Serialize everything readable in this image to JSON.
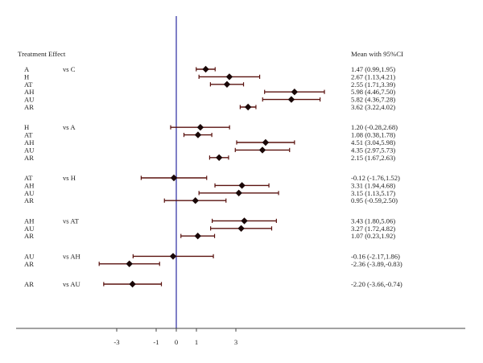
{
  "chart_data": {
    "type": "forest",
    "column_headers": {
      "left": "Treatment Effect",
      "right": "Mean with 95%CI"
    },
    "x_ticks": [
      {
        "value": -3,
        "label": "-3"
      },
      {
        "value": -1,
        "label": "-1"
      },
      {
        "value": 0,
        "label": "0"
      },
      {
        "value": 1,
        "label": "1"
      },
      {
        "value": 3,
        "label": "3"
      }
    ],
    "reference_value": 0,
    "groups": [
      {
        "comparator": "vs C",
        "rows": [
          {
            "treatment": "A",
            "mean": 1.47,
            "lower": 0.99,
            "upper": 1.95,
            "ci_text": "1.47 (0.99,1.95)"
          },
          {
            "treatment": "H",
            "mean": 2.67,
            "lower": 1.13,
            "upper": 4.21,
            "ci_text": "2.67 (1.13,4.21)"
          },
          {
            "treatment": "AT",
            "mean": 2.55,
            "lower": 1.71,
            "upper": 3.39,
            "ci_text": "2.55 (1.71,3.39)"
          },
          {
            "treatment": "AH",
            "mean": 5.98,
            "lower": 4.46,
            "upper": 7.5,
            "ci_text": "5.98 (4.46,7.50)"
          },
          {
            "treatment": "AU",
            "mean": 5.82,
            "lower": 4.36,
            "upper": 7.28,
            "ci_text": "5.82 (4.36,7.28)"
          },
          {
            "treatment": "AR",
            "mean": 3.62,
            "lower": 3.22,
            "upper": 4.02,
            "ci_text": "3.62 (3.22,4.02)"
          }
        ]
      },
      {
        "comparator": "vs A",
        "rows": [
          {
            "treatment": "H",
            "mean": 1.2,
            "lower": -0.28,
            "upper": 2.68,
            "ci_text": "1.20 (-0.28,2.68)"
          },
          {
            "treatment": "AT",
            "mean": 1.08,
            "lower": 0.38,
            "upper": 1.78,
            "ci_text": "1.08 (0.38,1.78)"
          },
          {
            "treatment": "AH",
            "mean": 4.51,
            "lower": 3.04,
            "upper": 5.98,
            "ci_text": "4.51 (3.04,5.98)"
          },
          {
            "treatment": "AU",
            "mean": 4.35,
            "lower": 2.97,
            "upper": 5.73,
            "ci_text": "4.35 (2.97,5.73)"
          },
          {
            "treatment": "AR",
            "mean": 2.15,
            "lower": 1.67,
            "upper": 2.63,
            "ci_text": "2.15 (1.67,2.63)"
          }
        ]
      },
      {
        "comparator": "vs H",
        "rows": [
          {
            "treatment": "AT",
            "mean": -0.12,
            "lower": -1.76,
            "upper": 1.52,
            "ci_text": "-0.12 (-1.76,1.52)"
          },
          {
            "treatment": "AH",
            "mean": 3.31,
            "lower": 1.94,
            "upper": 4.68,
            "ci_text": "3.31 (1.94,4.68)"
          },
          {
            "treatment": "AU",
            "mean": 3.15,
            "lower": 1.13,
            "upper": 5.17,
            "ci_text": "3.15 (1.13,5.17)"
          },
          {
            "treatment": "AR",
            "mean": 0.95,
            "lower": -0.59,
            "upper": 2.5,
            "ci_text": "0.95 (-0.59,2.50)"
          }
        ]
      },
      {
        "comparator": "vs AT",
        "rows": [
          {
            "treatment": "AH",
            "mean": 3.43,
            "lower": 1.8,
            "upper": 5.06,
            "ci_text": "3.43 (1.80,5.06)"
          },
          {
            "treatment": "AU",
            "mean": 3.27,
            "lower": 1.72,
            "upper": 4.82,
            "ci_text": "3.27 (1.72,4.82)"
          },
          {
            "treatment": "AR",
            "mean": 1.07,
            "lower": 0.23,
            "upper": 1.92,
            "ci_text": "1.07 (0.23,1.92)"
          }
        ]
      },
      {
        "comparator": "vs AH",
        "rows": [
          {
            "treatment": "AU",
            "mean": -0.16,
            "lower": -2.17,
            "upper": 1.86,
            "ci_text": "-0.16 (-2.17,1.86)"
          },
          {
            "treatment": "AR",
            "mean": -2.36,
            "lower": -3.89,
            "upper": -0.83,
            "ci_text": "-2.36 (-3.89,-0.83)"
          }
        ]
      },
      {
        "comparator": "vs AU",
        "rows": [
          {
            "treatment": "AR",
            "mean": -2.2,
            "lower": -3.66,
            "upper": -0.74,
            "ci_text": "-2.20 (-3.66,-0.74)"
          }
        ]
      }
    ]
  }
}
